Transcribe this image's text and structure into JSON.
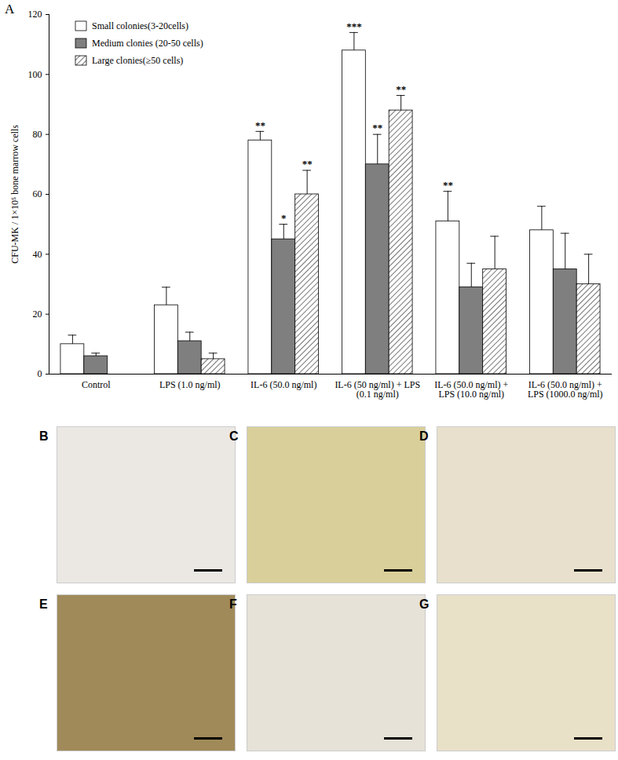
{
  "panel_label": "A",
  "chart_data": {
    "type": "bar",
    "ylabel": "CFU-MK / 1×10⁵ bone marrow cells",
    "categories": [
      "Control",
      "LPS (1.0 ng/ml)",
      "IL-6 (50.0 ng/ml)",
      "IL-6 (50 ng/ml) + LPS\n(0.1 ng/ml)",
      "IL-6 (50.0 ng/ml) +\nLPS (10.0 ng/ml)",
      "IL-6 (50.0 ng/ml) +\nLPS (1000.0 ng/ml)"
    ],
    "series": [
      {
        "name": "Small colonies(3-20cells)",
        "color": "#ffffff",
        "values": [
          10,
          23,
          78,
          108,
          51,
          48
        ],
        "errors": [
          3,
          6,
          3,
          6,
          10,
          8
        ],
        "significance": [
          null,
          null,
          "**",
          "***",
          "**",
          null
        ]
      },
      {
        "name": "Medium clonies (20-50 cells)",
        "color": "#7f7f7f",
        "values": [
          6,
          11,
          45,
          70,
          29,
          35
        ],
        "errors": [
          1,
          3,
          5,
          10,
          8,
          12
        ],
        "significance": [
          null,
          null,
          "*",
          "**",
          null,
          null
        ]
      },
      {
        "name": "Large clonies(≥50 cells)",
        "color": "#3a3a3a",
        "values": [
          null,
          5,
          60,
          88,
          35,
          30
        ],
        "errors": [
          null,
          2,
          8,
          5,
          11,
          10
        ],
        "significance": [
          null,
          null,
          "**",
          "**",
          null,
          null
        ]
      }
    ],
    "ylim": [
      0,
      120
    ],
    "yticks": [
      0,
      20,
      40,
      60,
      80,
      100,
      120
    ],
    "legend": "top-left"
  },
  "image_panels": [
    {
      "label": "B"
    },
    {
      "label": "C"
    },
    {
      "label": "D"
    },
    {
      "label": "E"
    },
    {
      "label": "F"
    },
    {
      "label": "G"
    }
  ]
}
